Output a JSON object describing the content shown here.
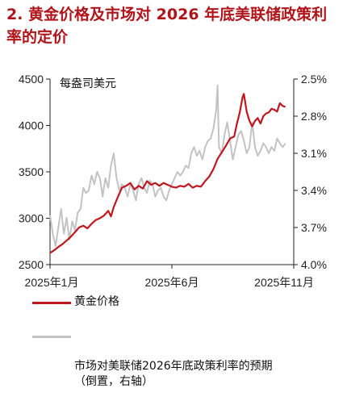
{
  "title": "2. 黄金价格及市场对 2026 年底美联储政策利率的定价",
  "chart_data": {
    "type": "line",
    "unit_label": "每盎司美元",
    "x_ticks": [
      "2025年1月",
      "2025年6月",
      "2025年11月"
    ],
    "y_left": {
      "min": 2500,
      "max": 4500,
      "ticks": [
        "2500",
        "3000",
        "3500",
        "4000",
        "4500"
      ]
    },
    "y_right": {
      "min": 2.5,
      "max": 4.0,
      "inverted": true,
      "ticks": [
        "2.5%",
        "2.8%",
        "3.1%",
        "3.4%",
        "3.7%",
        "4.0%"
      ]
    },
    "series": [
      {
        "name": "黄金价格",
        "axis": "left",
        "color": "#c0161d",
        "points": [
          [
            0,
            2625
          ],
          [
            3,
            2655
          ],
          [
            6,
            2690
          ],
          [
            9,
            2720
          ],
          [
            12,
            2760
          ],
          [
            15,
            2800
          ],
          [
            18,
            2850
          ],
          [
            21,
            2900
          ],
          [
            24,
            2920
          ],
          [
            27,
            2890
          ],
          [
            30,
            2940
          ],
          [
            33,
            2980
          ],
          [
            36,
            3000
          ],
          [
            39,
            3030
          ],
          [
            42,
            3080
          ],
          [
            44,
            3020
          ],
          [
            46,
            3120
          ],
          [
            49,
            3230
          ],
          [
            52,
            3330
          ],
          [
            55,
            3350
          ],
          [
            58,
            3380
          ],
          [
            61,
            3310
          ],
          [
            64,
            3350
          ],
          [
            67,
            3320
          ],
          [
            70,
            3400
          ],
          [
            73,
            3360
          ],
          [
            76,
            3380
          ],
          [
            79,
            3350
          ],
          [
            82,
            3380
          ],
          [
            85,
            3360
          ],
          [
            88,
            3340
          ],
          [
            91,
            3330
          ],
          [
            94,
            3350
          ],
          [
            97,
            3340
          ],
          [
            100,
            3370
          ],
          [
            103,
            3330
          ],
          [
            106,
            3350
          ],
          [
            109,
            3340
          ],
          [
            112,
            3400
          ],
          [
            115,
            3450
          ],
          [
            118,
            3530
          ],
          [
            121,
            3640
          ],
          [
            124,
            3710
          ],
          [
            127,
            3780
          ],
          [
            130,
            3860
          ],
          [
            133,
            3880
          ],
          [
            135,
            4020
          ],
          [
            137,
            4140
          ],
          [
            139,
            4300
          ],
          [
            140,
            4340
          ],
          [
            142,
            4150
          ],
          [
            144,
            4050
          ],
          [
            146,
            3990
          ],
          [
            148,
            4050
          ],
          [
            150,
            4080
          ],
          [
            152,
            4020
          ],
          [
            154,
            4100
          ],
          [
            156,
            4130
          ],
          [
            158,
            4140
          ],
          [
            160,
            4180
          ],
          [
            162,
            4170
          ],
          [
            164,
            4150
          ],
          [
            166,
            4240
          ],
          [
            168,
            4210
          ],
          [
            170,
            4200
          ]
        ]
      },
      {
        "name": "市场对美联储2026年底政策利率的预期（倒置，右轴）",
        "axis": "right",
        "color": "#c3c3c3",
        "points": [
          [
            0,
            3.6
          ],
          [
            2,
            3.75
          ],
          [
            4,
            3.85
          ],
          [
            6,
            3.7
          ],
          [
            8,
            3.55
          ],
          [
            10,
            3.75
          ],
          [
            12,
            3.62
          ],
          [
            14,
            3.8
          ],
          [
            16,
            3.65
          ],
          [
            18,
            3.72
          ],
          [
            20,
            3.58
          ],
          [
            22,
            3.55
          ],
          [
            24,
            3.38
          ],
          [
            26,
            3.42
          ],
          [
            28,
            3.4
          ],
          [
            30,
            3.28
          ],
          [
            32,
            3.35
          ],
          [
            34,
            3.25
          ],
          [
            36,
            3.3
          ],
          [
            38,
            3.45
          ],
          [
            40,
            3.3
          ],
          [
            42,
            3.38
          ],
          [
            44,
            3.2
          ],
          [
            46,
            3.1
          ],
          [
            48,
            3.3
          ],
          [
            50,
            3.4
          ],
          [
            52,
            3.35
          ],
          [
            54,
            3.38
          ],
          [
            56,
            3.45
          ],
          [
            58,
            3.35
          ],
          [
            60,
            3.4
          ],
          [
            62,
            3.48
          ],
          [
            64,
            3.35
          ],
          [
            66,
            3.3
          ],
          [
            68,
            3.38
          ],
          [
            70,
            3.42
          ],
          [
            72,
            3.32
          ],
          [
            74,
            3.35
          ],
          [
            76,
            3.45
          ],
          [
            78,
            3.4
          ],
          [
            80,
            3.38
          ],
          [
            82,
            3.45
          ],
          [
            84,
            3.48
          ],
          [
            86,
            3.4
          ],
          [
            88,
            3.35
          ],
          [
            90,
            3.3
          ],
          [
            92,
            3.25
          ],
          [
            94,
            3.28
          ],
          [
            96,
            3.25
          ],
          [
            98,
            3.2
          ],
          [
            100,
            3.22
          ],
          [
            102,
            3.1
          ],
          [
            104,
            3.05
          ],
          [
            106,
            3.12
          ],
          [
            108,
            3.08
          ],
          [
            110,
            3.15
          ],
          [
            112,
            3.05
          ],
          [
            114,
            3.0
          ],
          [
            116,
            2.98
          ],
          [
            118,
            2.9
          ],
          [
            120,
            2.75
          ],
          [
            121,
            2.55
          ],
          [
            122,
            3.05
          ],
          [
            124,
            3.1
          ],
          [
            126,
            2.95
          ],
          [
            128,
            2.85
          ],
          [
            130,
            3.0
          ],
          [
            132,
            3.15
          ],
          [
            134,
            3.05
          ],
          [
            136,
            2.95
          ],
          [
            138,
            2.92
          ],
          [
            140,
            3.0
          ],
          [
            142,
            3.1
          ],
          [
            144,
            3.05
          ],
          [
            146,
            2.85
          ],
          [
            148,
            3.05
          ],
          [
            150,
            3.12
          ],
          [
            152,
            3.08
          ],
          [
            154,
            3.02
          ],
          [
            156,
            3.05
          ],
          [
            158,
            3.1
          ],
          [
            160,
            3.05
          ],
          [
            162,
            3.08
          ],
          [
            164,
            2.98
          ],
          [
            166,
            3.02
          ],
          [
            168,
            3.05
          ],
          [
            170,
            3.02
          ]
        ]
      }
    ],
    "legend": [
      {
        "label": "黄金价格",
        "color": "#c0161d"
      },
      {
        "label": "市场对美联储2026年底政策利率的预期\n（倒置，右轴）",
        "color": "#c3c3c3"
      }
    ]
  }
}
